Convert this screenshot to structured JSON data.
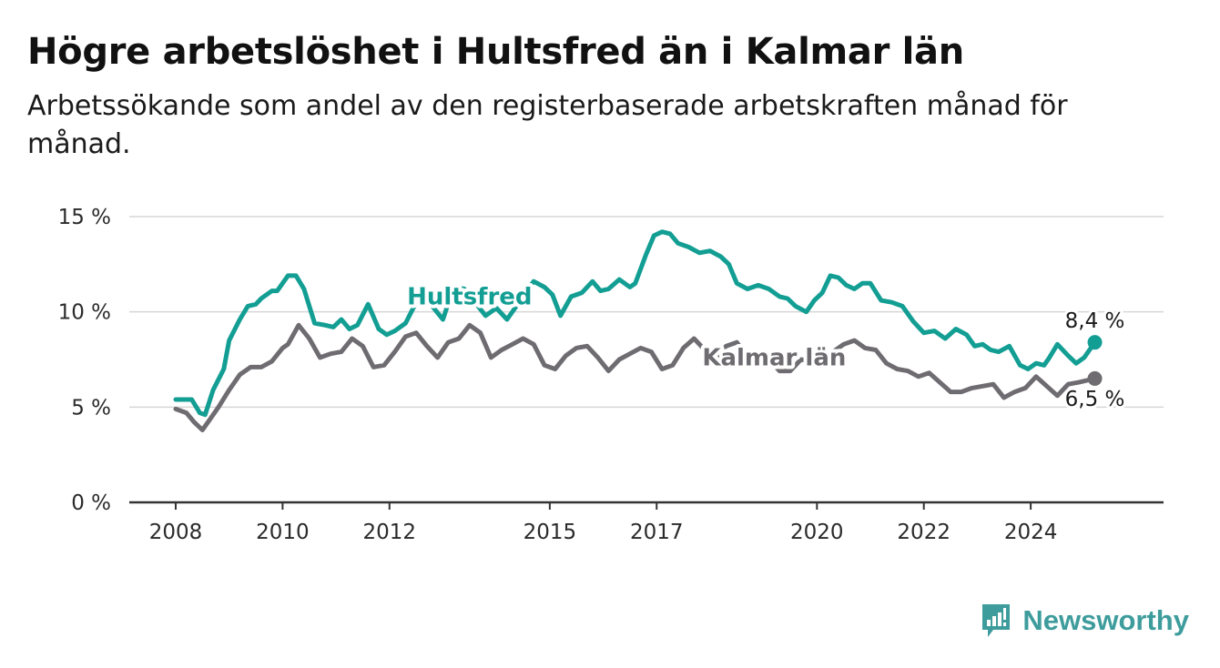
{
  "header": {
    "title": "Högre arbetslöshet i Hultsfred än i Kalmar län",
    "subtitle": "Arbetssökande som andel av den registerbaserade arbetskraften månad för månad."
  },
  "brand": {
    "name": "Newsworthy",
    "icon": "newsworthy-logo-icon",
    "color": "#3e9c9c"
  },
  "chart_data": {
    "type": "line",
    "title": "Högre arbetslöshet i Hultsfred än i Kalmar län",
    "subtitle": "Arbetssökande som andel av den registerbaserade arbetskraften månad för månad.",
    "xlabel": "",
    "ylabel": "",
    "ylim": [
      0,
      15
    ],
    "xlim": [
      2008,
      2025.6
    ],
    "y_ticks": [
      0,
      5,
      10,
      15
    ],
    "y_tick_labels": [
      "0 %",
      "5 %",
      "10 %",
      "15 %"
    ],
    "x_ticks": [
      2008,
      2010,
      2012,
      2015,
      2017,
      2020,
      2022,
      2024
    ],
    "x_tick_labels": [
      "2008",
      "2010",
      "2012",
      "2015",
      "2017",
      "2020",
      "2022",
      "2024"
    ],
    "grid": "horizontal",
    "legend": "inline labels",
    "series": [
      {
        "name": "Hultsfred",
        "color": "#139e94",
        "end_label": "8,4 %",
        "x": [
          2008.0,
          2008.3,
          2008.45,
          2008.55,
          2008.7,
          2008.9,
          2009.0,
          2009.2,
          2009.35,
          2009.5,
          2009.6,
          2009.8,
          2009.9,
          2010.1,
          2010.25,
          2010.4,
          2010.6,
          2010.8,
          2010.95,
          2011.1,
          2011.25,
          2011.4,
          2011.6,
          2011.8,
          2011.95,
          2012.1,
          2012.3,
          2012.5,
          2012.65,
          2012.8,
          2013.0,
          2013.2,
          2013.4,
          2013.6,
          2013.8,
          2014.0,
          2014.2,
          2014.4,
          2014.55,
          2014.7,
          2014.9,
          2015.05,
          2015.2,
          2015.4,
          2015.6,
          2015.8,
          2015.95,
          2016.1,
          2016.3,
          2016.5,
          2016.6,
          2016.8,
          2016.95,
          2017.1,
          2017.25,
          2017.4,
          2017.6,
          2017.8,
          2018.0,
          2018.2,
          2018.35,
          2018.5,
          2018.7,
          2018.9,
          2019.1,
          2019.3,
          2019.45,
          2019.6,
          2019.8,
          2019.95,
          2020.1,
          2020.25,
          2020.4,
          2020.55,
          2020.7,
          2020.85,
          2021.0,
          2021.2,
          2021.4,
          2021.6,
          2021.8,
          2022.0,
          2022.2,
          2022.4,
          2022.6,
          2022.8,
          2022.95,
          2023.1,
          2023.25,
          2023.4,
          2023.6,
          2023.8,
          2023.95,
          2024.1,
          2024.25,
          2024.35,
          2024.5,
          2024.7,
          2024.85,
          2025.0,
          2025.2
        ],
        "y": [
          5.4,
          5.4,
          4.7,
          4.6,
          5.9,
          7.0,
          8.5,
          9.6,
          10.3,
          10.4,
          10.7,
          11.1,
          11.1,
          11.9,
          11.9,
          11.2,
          9.4,
          9.3,
          9.2,
          9.6,
          9.1,
          9.3,
          10.4,
          9.1,
          8.8,
          9.0,
          9.4,
          10.5,
          10.8,
          10.3,
          9.6,
          11.3,
          11.2,
          10.5,
          9.8,
          10.2,
          9.6,
          10.4,
          11.0,
          11.6,
          11.3,
          10.9,
          9.8,
          10.8,
          11.0,
          11.6,
          11.1,
          11.2,
          11.7,
          11.3,
          11.5,
          13.0,
          14.0,
          14.2,
          14.1,
          13.6,
          13.4,
          13.1,
          13.2,
          12.9,
          12.5,
          11.5,
          11.2,
          11.4,
          11.2,
          10.8,
          10.7,
          10.3,
          10.0,
          10.6,
          11.0,
          11.9,
          11.8,
          11.4,
          11.2,
          11.5,
          11.5,
          10.6,
          10.5,
          10.3,
          9.5,
          8.9,
          9.0,
          8.6,
          9.1,
          8.8,
          8.2,
          8.3,
          8.0,
          7.9,
          8.2,
          7.2,
          7.0,
          7.3,
          7.2,
          7.6,
          8.3,
          7.7,
          7.3,
          7.6,
          8.4
        ]
      },
      {
        "name": "Kalmar län",
        "color": "#6e6c70",
        "end_label": "6,5 %",
        "x": [
          2008.0,
          2008.2,
          2008.35,
          2008.5,
          2008.65,
          2008.8,
          2009.0,
          2009.2,
          2009.4,
          2009.6,
          2009.8,
          2010.0,
          2010.1,
          2010.3,
          2010.5,
          2010.7,
          2010.9,
          2011.1,
          2011.3,
          2011.5,
          2011.7,
          2011.9,
          2012.1,
          2012.3,
          2012.5,
          2012.7,
          2012.9,
          2013.1,
          2013.3,
          2013.5,
          2013.7,
          2013.9,
          2014.1,
          2014.3,
          2014.5,
          2014.7,
          2014.9,
          2015.1,
          2015.3,
          2015.5,
          2015.7,
          2015.9,
          2016.1,
          2016.3,
          2016.5,
          2016.7,
          2016.9,
          2017.1,
          2017.3,
          2017.5,
          2017.7,
          2017.9,
          2018.1,
          2018.3,
          2018.5,
          2018.7,
          2018.9,
          2019.1,
          2019.3,
          2019.5,
          2019.7,
          2019.9,
          2020.1,
          2020.3,
          2020.5,
          2020.7,
          2020.9,
          2021.1,
          2021.3,
          2021.5,
          2021.7,
          2021.9,
          2022.1,
          2022.3,
          2022.5,
          2022.7,
          2022.9,
          2023.1,
          2023.3,
          2023.5,
          2023.7,
          2023.9,
          2024.1,
          2024.3,
          2024.5,
          2024.7,
          2024.9,
          2025.2
        ],
        "y": [
          4.9,
          4.7,
          4.2,
          3.8,
          4.4,
          5.0,
          5.9,
          6.7,
          7.1,
          7.1,
          7.4,
          8.1,
          8.3,
          9.3,
          8.6,
          7.6,
          7.8,
          7.9,
          8.6,
          8.2,
          7.1,
          7.2,
          7.9,
          8.7,
          8.9,
          8.2,
          7.6,
          8.4,
          8.6,
          9.3,
          8.9,
          7.6,
          8.0,
          8.3,
          8.6,
          8.3,
          7.2,
          7.0,
          7.7,
          8.1,
          8.2,
          7.6,
          6.9,
          7.5,
          7.8,
          8.1,
          7.9,
          7.0,
          7.2,
          8.1,
          8.6,
          8.0,
          7.5,
          8.2,
          8.4,
          7.6,
          7.2,
          7.5,
          6.9,
          6.9,
          7.5,
          7.4,
          7.7,
          7.9,
          8.3,
          8.5,
          8.1,
          8.0,
          7.3,
          7.0,
          6.9,
          6.6,
          6.8,
          6.3,
          5.8,
          5.8,
          6.0,
          6.1,
          6.2,
          5.5,
          5.8,
          6.0,
          6.6,
          6.1,
          5.6,
          6.2,
          6.3,
          6.5
        ]
      }
    ],
    "series_labels": [
      {
        "series": "Hultsfred",
        "text": "Hultsfred",
        "x": 2013.5,
        "y": 10.4
      },
      {
        "series": "Kalmar län",
        "text": "Kalmar län",
        "x": 2019.2,
        "y": 7.2
      }
    ]
  }
}
